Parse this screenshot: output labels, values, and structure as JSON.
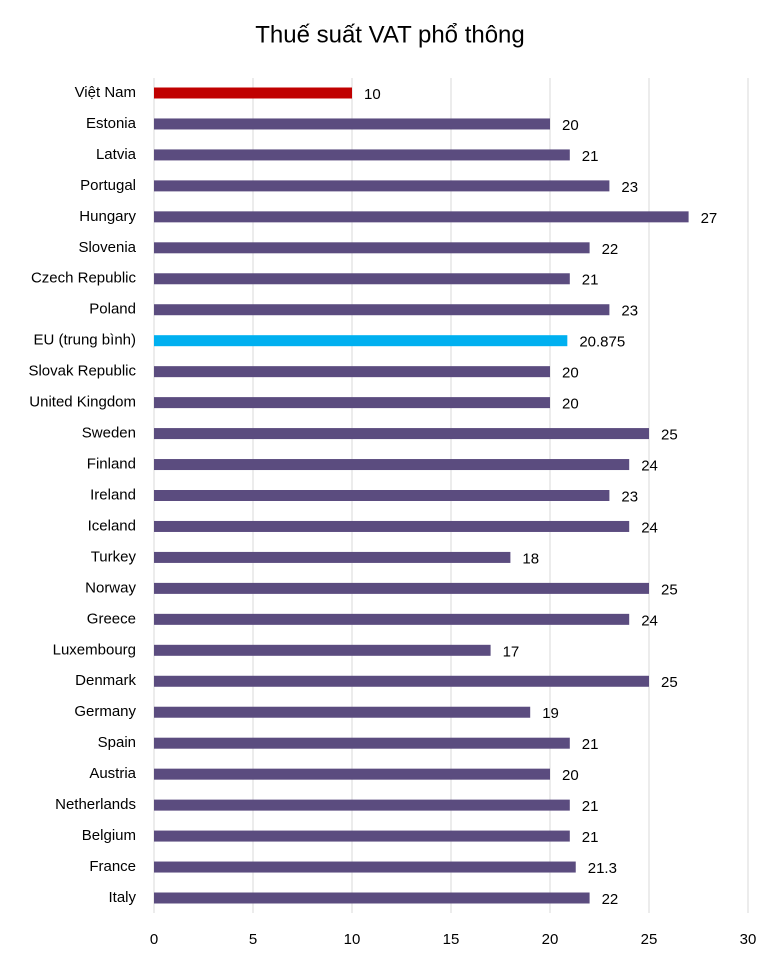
{
  "chart_data": {
    "type": "bar",
    "orientation": "horizontal",
    "title": "Thuế suất VAT phổ thông",
    "categories": [
      "Việt Nam",
      "Estonia",
      "Latvia",
      "Portugal",
      "Hungary",
      "Slovenia",
      "Czech Republic",
      "Poland",
      "EU (trung bình)",
      "Slovak Republic",
      "United Kingdom",
      "Sweden",
      "Finland",
      "Ireland",
      "Iceland",
      "Turkey",
      "Norway",
      "Greece",
      "Luxembourg",
      "Denmark",
      "Germany",
      "Spain",
      "Austria",
      "Netherlands",
      "Belgium",
      "France",
      "Italy"
    ],
    "values": [
      10,
      20,
      21,
      23,
      27,
      22,
      21,
      23,
      20.875,
      20,
      20,
      25,
      24,
      23,
      24,
      18,
      25,
      24,
      17,
      25,
      19,
      21,
      20,
      21,
      21,
      21.3,
      22
    ],
    "colors": [
      "#c00000",
      "#5b4c7f",
      "#5b4c7f",
      "#5b4c7f",
      "#5b4c7f",
      "#5b4c7f",
      "#5b4c7f",
      "#5b4c7f",
      "#00b0f0",
      "#5b4c7f",
      "#5b4c7f",
      "#5b4c7f",
      "#5b4c7f",
      "#5b4c7f",
      "#5b4c7f",
      "#5b4c7f",
      "#5b4c7f",
      "#5b4c7f",
      "#5b4c7f",
      "#5b4c7f",
      "#5b4c7f",
      "#5b4c7f",
      "#5b4c7f",
      "#5b4c7f",
      "#5b4c7f",
      "#5b4c7f",
      "#5b4c7f"
    ],
    "xlim": [
      0,
      30
    ],
    "xticks": [
      0,
      5,
      10,
      15,
      20,
      25,
      30
    ],
    "grid": true
  }
}
